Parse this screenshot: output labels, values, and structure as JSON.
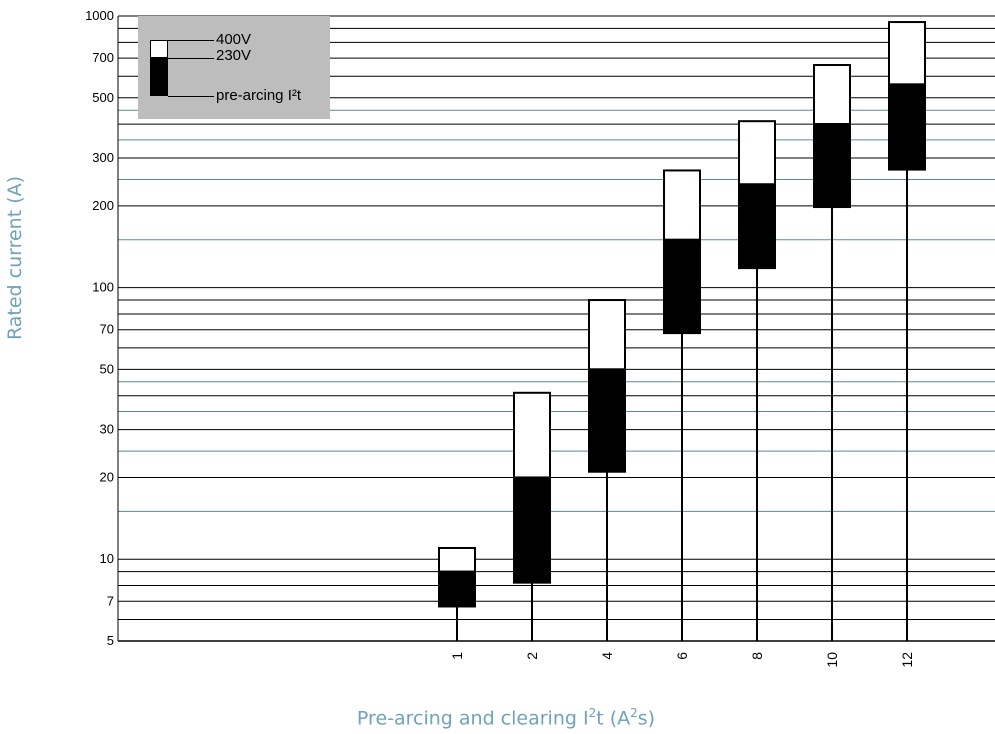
{
  "chart_data": {
    "type": "bar",
    "title": "",
    "xlabel_main": "Pre-arcing and clearing I",
    "xlabel_sup1": "2",
    "xlabel_mid": "t (A",
    "xlabel_sup2": "2",
    "xlabel_end": "s)",
    "ylabel": "Rated current (A)",
    "y_scale": "log",
    "ylim": [
      5,
      1000
    ],
    "y_ticks": [
      "5",
      "7",
      "10",
      "20",
      "30",
      "50",
      "70",
      "100",
      "200",
      "300",
      "500",
      "700",
      "1000"
    ],
    "y_gridlines_black": [
      6,
      7,
      8,
      9,
      10,
      20,
      30,
      40,
      50,
      60,
      70,
      80,
      90,
      100,
      200,
      300,
      400,
      500,
      600,
      700,
      800,
      900,
      1000
    ],
    "y_gridlines_teal": [
      15,
      25,
      35,
      45,
      150,
      250,
      350,
      450
    ],
    "grid_colors": {
      "major": "#000000",
      "minor": "#5b8a96"
    },
    "categories": [
      "1",
      "2",
      "4",
      "6",
      "8",
      "10",
      "12"
    ],
    "series": [
      {
        "name": "pre-arcing I²t",
        "color": "#000000",
        "low": [
          6.7,
          8.2,
          21,
          68,
          118,
          198,
          272
        ],
        "high": [
          9,
          20,
          50,
          150,
          240,
          400,
          560
        ]
      },
      {
        "name": "230V",
        "color": "#000000",
        "low": [
          6.7,
          8.2,
          21,
          68,
          118,
          198,
          272
        ],
        "high": [
          9,
          20,
          50,
          150,
          240,
          400,
          560
        ]
      },
      {
        "name": "400V",
        "color": "#ffffff",
        "low": [
          9,
          20,
          50,
          150,
          240,
          400,
          560
        ],
        "high": [
          11,
          41,
          90,
          270,
          410,
          660,
          950
        ]
      }
    ],
    "legend": {
      "position": "top-left",
      "labels": [
        "400V",
        "230V",
        "pre-arcing I²t"
      ],
      "background": "#bdbdbd"
    }
  },
  "colors": {
    "axis_label": "#6fa3b6",
    "bar_outline": "#000000"
  }
}
